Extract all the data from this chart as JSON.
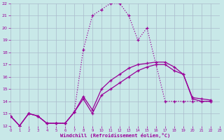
{
  "xlabel": "Windchill (Refroidissement éolien,°C)",
  "background_color": "#c8e8e8",
  "grid_color": "#aabbcc",
  "line_color1": "#990099",
  "line_color2": "#880088",
  "line_color3": "#aa00aa",
  "xlim": [
    0,
    23
  ],
  "ylim": [
    12,
    22
  ],
  "yticks": [
    12,
    13,
    14,
    15,
    16,
    17,
    18,
    19,
    20,
    21,
    22
  ],
  "xticks": [
    0,
    1,
    2,
    3,
    4,
    5,
    6,
    7,
    8,
    9,
    10,
    11,
    12,
    13,
    14,
    15,
    16,
    17,
    18,
    19,
    20,
    21,
    22,
    23
  ],
  "line1_x": [
    0,
    1,
    2,
    3,
    4,
    5,
    6,
    7,
    8,
    9,
    10,
    11,
    12,
    13,
    14,
    15,
    16,
    17,
    18,
    19,
    20,
    21,
    22
  ],
  "line1_y": [
    12.8,
    12.0,
    13.0,
    12.8,
    12.2,
    12.2,
    12.2,
    13.1,
    18.2,
    21.0,
    21.5,
    22.0,
    22.0,
    21.0,
    19.0,
    20.0,
    17.0,
    14.0,
    14.0,
    14.0,
    14.0,
    14.0,
    14.0
  ],
  "line2_x": [
    0,
    1,
    2,
    3,
    4,
    5,
    6,
    7,
    8,
    9,
    10,
    11,
    12,
    13,
    14,
    15,
    16,
    17,
    18,
    19,
    20,
    21,
    22
  ],
  "line2_y": [
    12.8,
    12.0,
    13.0,
    12.8,
    12.2,
    12.2,
    12.2,
    13.1,
    14.2,
    13.0,
    14.5,
    15.0,
    15.5,
    16.0,
    16.5,
    16.8,
    17.0,
    17.0,
    16.5,
    16.2,
    14.2,
    14.0,
    14.0
  ],
  "line3_x": [
    0,
    1,
    2,
    3,
    4,
    5,
    6,
    7,
    8,
    9,
    10,
    11,
    12,
    13,
    14,
    15,
    16,
    17,
    18,
    19,
    20,
    21,
    22
  ],
  "line3_y": [
    12.8,
    12.0,
    13.0,
    12.8,
    12.2,
    12.2,
    12.2,
    13.1,
    14.4,
    13.3,
    15.0,
    15.7,
    16.2,
    16.7,
    17.0,
    17.1,
    17.2,
    17.2,
    16.8,
    16.2,
    14.3,
    14.2,
    14.1
  ]
}
